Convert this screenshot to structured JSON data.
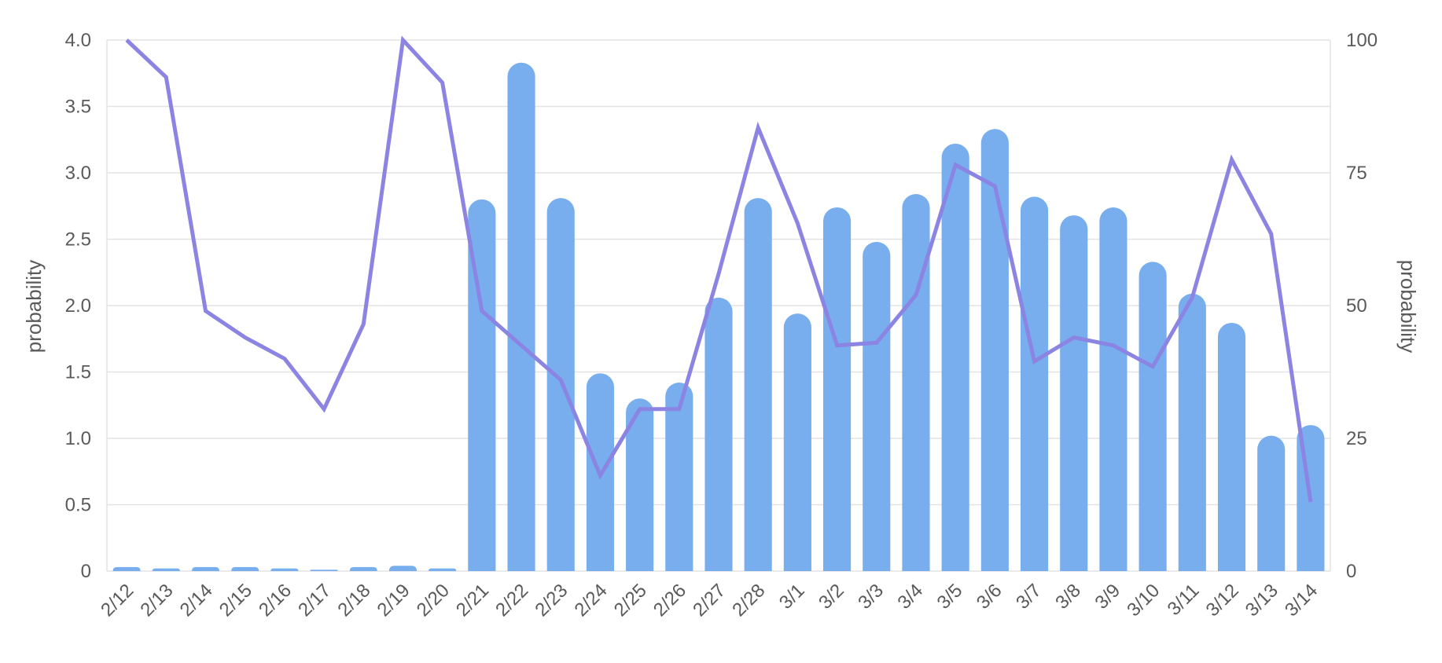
{
  "chart_data": {
    "type": "bar",
    "categories": [
      "2/12",
      "2/13",
      "2/14",
      "2/15",
      "2/16",
      "2/17",
      "2/18",
      "2/19",
      "2/20",
      "2/21",
      "2/22",
      "2/23",
      "2/24",
      "2/25",
      "2/26",
      "2/27",
      "2/28",
      "3/1",
      "3/2",
      "3/3",
      "3/4",
      "3/5",
      "3/6",
      "3/7",
      "3/8",
      "3/9",
      "3/10",
      "3/11",
      "3/12",
      "3/13",
      "3/14"
    ],
    "series": [
      {
        "type": "bar",
        "axis": "left",
        "color": "#78aeed",
        "values": [
          0.03,
          0.02,
          0.03,
          0.03,
          0.02,
          0.01,
          0.03,
          0.04,
          0.02,
          2.8,
          3.83,
          2.81,
          1.49,
          1.3,
          1.42,
          2.06,
          2.81,
          1.94,
          2.74,
          2.48,
          2.84,
          3.22,
          3.33,
          2.82,
          2.68,
          2.74,
          2.33,
          2.09,
          1.87,
          1.02,
          1.1
        ]
      },
      {
        "type": "line",
        "axis": "right",
        "color": "#8b84e3",
        "values": [
          100,
          93,
          49,
          44,
          40,
          30.5,
          46.5,
          100,
          92,
          49,
          42.5,
          36,
          18,
          30.5,
          30.5,
          56,
          83.5,
          65.5,
          42.5,
          43,
          52,
          76.5,
          72.5,
          39.5,
          44,
          42.5,
          38.5,
          51.5,
          77.5,
          63.5,
          13
        ]
      }
    ],
    "y_left": {
      "label": "probability",
      "ylim": [
        0,
        4
      ],
      "ticks": [
        "0",
        "0.5",
        "1.0",
        "1.5",
        "2.0",
        "2.5",
        "3.0",
        "3.5",
        "4.0"
      ]
    },
    "y_right": {
      "label": "probability",
      "ylim": [
        0,
        100
      ],
      "ticks": [
        "0",
        "25",
        "50",
        "75",
        "100"
      ]
    },
    "grid": true
  }
}
